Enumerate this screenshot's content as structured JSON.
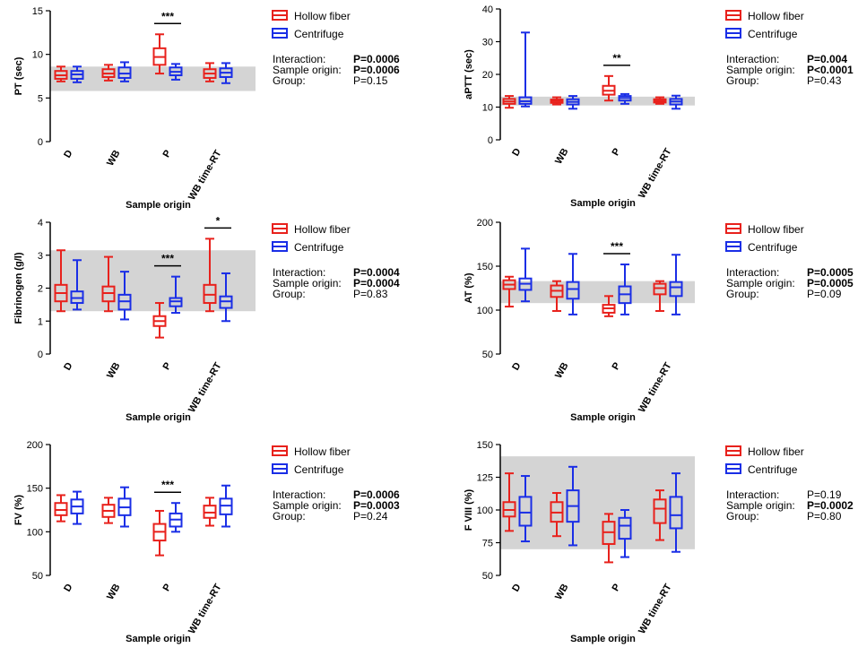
{
  "figure": {
    "legend": {
      "hollow_fiber": "Hollow fiber",
      "centrifuge": "Centrifuge"
    },
    "colors": {
      "hollow_fiber": "#e8211c",
      "centrifuge": "#1a2ee6",
      "reference_band": "#d4d4d4"
    }
  },
  "chart_data": [
    {
      "id": "pt",
      "type": "box",
      "ylabel": "PT (sec)",
      "xlabel": "Sample origin",
      "categories": [
        "D",
        "WB",
        "P",
        "WB time-RT"
      ],
      "ylim": [
        0,
        15
      ],
      "yticks": [
        0,
        5,
        10,
        15
      ],
      "reference_band": [
        5.8,
        8.6
      ],
      "series": [
        {
          "name": "Hollow fiber",
          "boxes": [
            {
              "min": 6.9,
              "q1": 7.2,
              "median": 7.6,
              "q3": 8.1,
              "max": 8.6
            },
            {
              "min": 7.0,
              "q1": 7.4,
              "median": 7.8,
              "q3": 8.3,
              "max": 8.8
            },
            {
              "min": 7.8,
              "q1": 8.8,
              "median": 9.7,
              "q3": 10.7,
              "max": 12.3
            },
            {
              "min": 6.9,
              "q1": 7.3,
              "median": 7.8,
              "q3": 8.3,
              "max": 9.0
            }
          ]
        },
        {
          "name": "Centrifuge",
          "boxes": [
            {
              "min": 6.8,
              "q1": 7.2,
              "median": 7.7,
              "q3": 8.1,
              "max": 8.6
            },
            {
              "min": 6.9,
              "q1": 7.3,
              "median": 7.8,
              "q3": 8.5,
              "max": 9.1
            },
            {
              "min": 7.1,
              "q1": 7.6,
              "median": 8.0,
              "q3": 8.5,
              "max": 8.9
            },
            {
              "min": 6.7,
              "q1": 7.4,
              "median": 7.9,
              "q3": 8.4,
              "max": 9.0
            }
          ]
        }
      ],
      "significance": [
        {
          "category": "P",
          "label": "***"
        }
      ],
      "stats": [
        {
          "label": "Interaction:",
          "value": "P=0.0006",
          "bold": true
        },
        {
          "label": "Sample origin:",
          "value": "P=0.0006",
          "bold": true
        },
        {
          "label": "Group:",
          "value": "P=0.15",
          "bold": false
        }
      ]
    },
    {
      "id": "aptt",
      "type": "box",
      "ylabel": "aPTT (sec)",
      "xlabel": "Sample origin",
      "categories": [
        "D",
        "WB",
        "P",
        "WB time-RT"
      ],
      "ylim": [
        0,
        40
      ],
      "yticks": [
        0,
        10,
        20,
        30,
        40
      ],
      "reference_band": [
        10.5,
        13.2
      ],
      "series": [
        {
          "name": "Hollow fiber",
          "boxes": [
            {
              "min": 9.8,
              "q1": 11.0,
              "median": 11.7,
              "q3": 12.5,
              "max": 13.4
            },
            {
              "min": 10.8,
              "q1": 11.3,
              "median": 11.8,
              "q3": 12.3,
              "max": 13.0
            },
            {
              "min": 12.0,
              "q1": 13.8,
              "median": 15.0,
              "q3": 16.5,
              "max": 19.5
            },
            {
              "min": 11.0,
              "q1": 11.4,
              "median": 11.9,
              "q3": 12.4,
              "max": 13.0
            }
          ]
        },
        {
          "name": "Centrifuge",
          "boxes": [
            {
              "min": 10.2,
              "q1": 11.0,
              "median": 11.8,
              "q3": 13.0,
              "max": 32.8
            },
            {
              "min": 9.5,
              "q1": 10.8,
              "median": 11.6,
              "q3": 12.4,
              "max": 13.4
            },
            {
              "min": 11.0,
              "q1": 12.0,
              "median": 12.8,
              "q3": 13.4,
              "max": 14.0
            },
            {
              "min": 9.5,
              "q1": 10.8,
              "median": 11.7,
              "q3": 12.5,
              "max": 13.5
            }
          ]
        }
      ],
      "significance": [
        {
          "category": "P",
          "label": "**"
        }
      ],
      "stats": [
        {
          "label": "Interaction:",
          "value": "P=0.004",
          "bold": true
        },
        {
          "label": "Sample origin:",
          "value": "P<0.0001",
          "bold": true
        },
        {
          "label": "Group:",
          "value": "P=0.43",
          "bold": false
        }
      ]
    },
    {
      "id": "fibrinogen",
      "type": "box",
      "ylabel": "Fibrinogen (g/l)",
      "xlabel": "Sample origin",
      "categories": [
        "D",
        "WB",
        "P",
        "WB time-RT"
      ],
      "ylim": [
        0,
        4
      ],
      "yticks": [
        0,
        1,
        2,
        3,
        4
      ],
      "reference_band": [
        1.3,
        3.15
      ],
      "series": [
        {
          "name": "Hollow fiber",
          "boxes": [
            {
              "min": 1.3,
              "q1": 1.6,
              "median": 1.85,
              "q3": 2.1,
              "max": 3.15
            },
            {
              "min": 1.3,
              "q1": 1.6,
              "median": 1.85,
              "q3": 2.05,
              "max": 2.95
            },
            {
              "min": 0.5,
              "q1": 0.85,
              "median": 1.0,
              "q3": 1.15,
              "max": 1.55
            },
            {
              "min": 1.3,
              "q1": 1.55,
              "median": 1.8,
              "q3": 2.1,
              "max": 3.5
            }
          ]
        },
        {
          "name": "Centrifuge",
          "boxes": [
            {
              "min": 1.35,
              "q1": 1.55,
              "median": 1.7,
              "q3": 1.9,
              "max": 2.85
            },
            {
              "min": 1.05,
              "q1": 1.35,
              "median": 1.6,
              "q3": 1.8,
              "max": 2.5
            },
            {
              "min": 1.25,
              "q1": 1.45,
              "median": 1.6,
              "q3": 1.7,
              "max": 2.35
            },
            {
              "min": 1.0,
              "q1": 1.4,
              "median": 1.6,
              "q3": 1.75,
              "max": 2.45
            }
          ]
        }
      ],
      "significance": [
        {
          "category": "P",
          "label": "***"
        },
        {
          "category": "WB time-RT",
          "label": "*"
        }
      ],
      "stats": [
        {
          "label": "Interaction:",
          "value": "P=0.0004",
          "bold": true
        },
        {
          "label": "Sample origin:",
          "value": "P=0.0004",
          "bold": true
        },
        {
          "label": "Group:",
          "value": "P=0.83",
          "bold": false
        }
      ]
    },
    {
      "id": "at",
      "type": "box",
      "ylabel": "AT (%)",
      "xlabel": "Sample origin",
      "categories": [
        "D",
        "WB",
        "P",
        "WB time-RT"
      ],
      "ylim": [
        50,
        200
      ],
      "yticks": [
        50,
        100,
        150,
        200
      ],
      "reference_band": [
        108,
        133
      ],
      "series": [
        {
          "name": "Hollow fiber",
          "boxes": [
            {
              "min": 104,
              "q1": 124,
              "median": 129,
              "q3": 134,
              "max": 138
            },
            {
              "min": 99,
              "q1": 115,
              "median": 122,
              "q3": 128,
              "max": 133
            },
            {
              "min": 93,
              "q1": 97,
              "median": 102,
              "q3": 106,
              "max": 116
            },
            {
              "min": 99,
              "q1": 118,
              "median": 125,
              "q3": 130,
              "max": 133
            }
          ]
        },
        {
          "name": "Centrifuge",
          "boxes": [
            {
              "min": 110,
              "q1": 123,
              "median": 130,
              "q3": 136,
              "max": 170
            },
            {
              "min": 95,
              "q1": 113,
              "median": 124,
              "q3": 132,
              "max": 164
            },
            {
              "min": 95,
              "q1": 108,
              "median": 118,
              "q3": 127,
              "max": 152
            },
            {
              "min": 95,
              "q1": 116,
              "median": 126,
              "q3": 132,
              "max": 163
            }
          ]
        }
      ],
      "significance": [
        {
          "category": "P",
          "label": "***"
        }
      ],
      "stats": [
        {
          "label": "Interaction:",
          "value": "P=0.0005",
          "bold": true
        },
        {
          "label": "Sample origin:",
          "value": "P=0.0005",
          "bold": true
        },
        {
          "label": "Group:",
          "value": "P=0.09",
          "bold": false
        }
      ]
    },
    {
      "id": "fv",
      "type": "box",
      "ylabel": "FV (%)",
      "xlabel": "Sample origin",
      "categories": [
        "D",
        "WB",
        "P",
        "WB time-RT"
      ],
      "ylim": [
        50,
        200
      ],
      "yticks": [
        50,
        100,
        150,
        200
      ],
      "reference_band": null,
      "series": [
        {
          "name": "Hollow fiber",
          "boxes": [
            {
              "min": 112,
              "q1": 119,
              "median": 125,
              "q3": 133,
              "max": 142
            },
            {
              "min": 110,
              "q1": 117,
              "median": 124,
              "q3": 131,
              "max": 139
            },
            {
              "min": 73,
              "q1": 90,
              "median": 100,
              "q3": 109,
              "max": 124
            },
            {
              "min": 107,
              "q1": 116,
              "median": 122,
              "q3": 130,
              "max": 139
            }
          ]
        },
        {
          "name": "Centrifuge",
          "boxes": [
            {
              "min": 109,
              "q1": 121,
              "median": 129,
              "q3": 137,
              "max": 146
            },
            {
              "min": 106,
              "q1": 119,
              "median": 128,
              "q3": 138,
              "max": 151
            },
            {
              "min": 100,
              "q1": 106,
              "median": 114,
              "q3": 121,
              "max": 133
            },
            {
              "min": 106,
              "q1": 120,
              "median": 130,
              "q3": 138,
              "max": 153
            }
          ]
        }
      ],
      "significance": [
        {
          "category": "P",
          "label": "***"
        }
      ],
      "stats": [
        {
          "label": "Interaction:",
          "value": "P=0.0006",
          "bold": true
        },
        {
          "label": "Sample origin:",
          "value": "P=0.0003",
          "bold": true
        },
        {
          "label": "Group:",
          "value": "P=0.24",
          "bold": false
        }
      ]
    },
    {
      "id": "fviii",
      "type": "box",
      "ylabel": "F VIII (%)",
      "xlabel": "Sample origin",
      "categories": [
        "D",
        "WB",
        "P",
        "WB time-RT"
      ],
      "ylim": [
        50,
        150
      ],
      "yticks": [
        50,
        75,
        100,
        125,
        150
      ],
      "reference_band": [
        70,
        141
      ],
      "series": [
        {
          "name": "Hollow fiber",
          "boxes": [
            {
              "min": 84,
              "q1": 95,
              "median": 100,
              "q3": 106,
              "max": 128
            },
            {
              "min": 80,
              "q1": 91,
              "median": 98,
              "q3": 106,
              "max": 113
            },
            {
              "min": 60,
              "q1": 74,
              "median": 83,
              "q3": 91,
              "max": 97
            },
            {
              "min": 77,
              "q1": 90,
              "median": 101,
              "q3": 108,
              "max": 115
            }
          ]
        },
        {
          "name": "Centrifuge",
          "boxes": [
            {
              "min": 76,
              "q1": 88,
              "median": 98,
              "q3": 110,
              "max": 126
            },
            {
              "min": 73,
              "q1": 91,
              "median": 103,
              "q3": 115,
              "max": 133
            },
            {
              "min": 64,
              "q1": 78,
              "median": 88,
              "q3": 94,
              "max": 100
            },
            {
              "min": 68,
              "q1": 86,
              "median": 96,
              "q3": 110,
              "max": 128
            }
          ]
        }
      ],
      "significance": [],
      "stats": [
        {
          "label": "Interaction:",
          "value": "P=0.19",
          "bold": false
        },
        {
          "label": "Sample origin:",
          "value": "P=0.0002",
          "bold": true
        },
        {
          "label": "Group:",
          "value": "P=0.80",
          "bold": false
        }
      ]
    }
  ]
}
